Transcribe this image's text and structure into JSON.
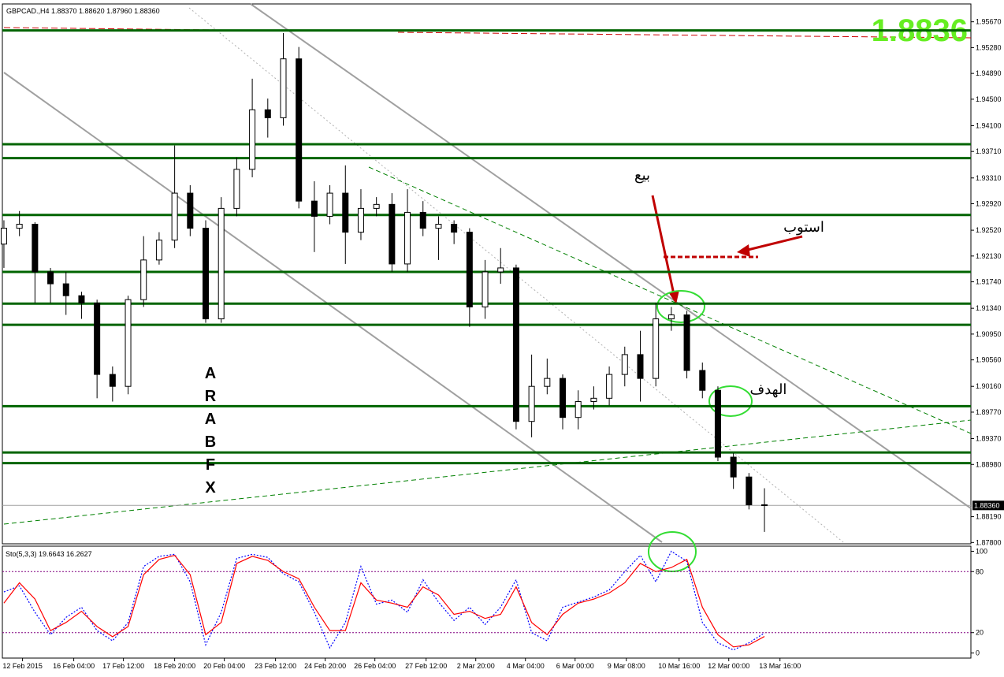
{
  "chart_data": {
    "type": "candlestick",
    "title": "GBPCAD.,H4 1.88370 1.88620 1.87960 1.88360",
    "ohlc": [
      [
        1.9231,
        1.9267,
        1.9195,
        1.9255
      ],
      [
        1.9255,
        1.9281,
        1.9243,
        1.9261
      ],
      [
        1.9261,
        1.9264,
        1.9142,
        1.9189
      ],
      [
        1.9189,
        1.9195,
        1.9142,
        1.9171
      ],
      [
        1.9171,
        1.9189,
        1.9124,
        1.9153
      ],
      [
        1.9153,
        1.9159,
        1.9118,
        1.9142
      ],
      [
        1.9142,
        1.9147,
        1.8998,
        1.9034
      ],
      [
        1.9034,
        1.9046,
        1.8993,
        1.9016
      ],
      [
        1.9016,
        1.9153,
        1.9004,
        1.9147
      ],
      [
        1.9147,
        1.9243,
        1.9136,
        1.9207
      ],
      [
        1.9207,
        1.9249,
        1.92,
        1.9237
      ],
      [
        1.9237,
        1.938,
        1.9225,
        1.9308
      ],
      [
        1.9308,
        1.932,
        1.9243,
        1.9255
      ],
      [
        1.9255,
        1.9267,
        1.9112,
        1.9118
      ],
      [
        1.9118,
        1.9302,
        1.9112,
        1.9285
      ],
      [
        1.9285,
        1.9362,
        1.9273,
        1.9344
      ],
      [
        1.9344,
        1.9481,
        1.9332,
        1.9434
      ],
      [
        1.9434,
        1.9451,
        1.9392,
        1.9422
      ],
      [
        1.9422,
        1.955,
        1.941,
        1.9511
      ],
      [
        1.9511,
        1.9529,
        1.9285,
        1.9296
      ],
      [
        1.9296,
        1.9326,
        1.9219,
        1.9273
      ],
      [
        1.9273,
        1.932,
        1.9261,
        1.9308
      ],
      [
        1.9308,
        1.935,
        1.9201,
        1.9249
      ],
      [
        1.9249,
        1.9314,
        1.9237,
        1.9285
      ],
      [
        1.9285,
        1.9302,
        1.9273,
        1.9291
      ],
      [
        1.9291,
        1.9308,
        1.9189,
        1.9201
      ],
      [
        1.9201,
        1.9314,
        1.9189,
        1.9279
      ],
      [
        1.9279,
        1.9296,
        1.9243,
        1.9255
      ],
      [
        1.9255,
        1.9273,
        1.9207,
        1.9261
      ],
      [
        1.9261,
        1.9267,
        1.9231,
        1.9249
      ],
      [
        1.9249,
        1.9255,
        1.9106,
        1.9136
      ],
      [
        1.9136,
        1.9207,
        1.9118,
        1.9189
      ],
      [
        1.9189,
        1.9225,
        1.9171,
        1.9195
      ],
      [
        1.9195,
        1.92,
        1.8951,
        1.8963
      ],
      [
        1.8963,
        1.9064,
        1.8939,
        1.9016
      ],
      [
        1.9016,
        1.9058,
        1.9004,
        1.9028
      ],
      [
        1.9028,
        1.9034,
        1.8951,
        1.8969
      ],
      [
        1.8969,
        1.901,
        1.8951,
        1.8993
      ],
      [
        1.8993,
        1.9016,
        1.8981,
        1.8998
      ],
      [
        1.8998,
        1.9046,
        1.8987,
        1.9034
      ],
      [
        1.9034,
        1.9076,
        1.9016,
        1.9064
      ],
      [
        1.9064,
        1.91,
        1.8993,
        1.9028
      ],
      [
        1.9028,
        1.9142,
        1.9016,
        1.9118
      ],
      [
        1.9118,
        1.9136,
        1.91,
        1.9124
      ],
      [
        1.9124,
        1.913,
        1.9028,
        1.904
      ],
      [
        1.904,
        1.9052,
        1.8998,
        1.901
      ],
      [
        1.901,
        1.9016,
        1.8903,
        1.8909
      ],
      [
        1.8909,
        1.8915,
        1.8861,
        1.8879
      ],
      [
        1.8879,
        1.8885,
        1.883,
        1.8837
      ],
      [
        1.8837,
        1.8862,
        1.8796,
        1.8836
      ]
    ],
    "xlim": [
      -0.1,
      62.3
    ],
    "xticks": [
      {
        "value": 1.2,
        "label": "12 Feb 2015"
      },
      {
        "value": 4.5,
        "label": "16 Feb 04:00"
      },
      {
        "value": 7.7,
        "label": "17 Feb 12:00"
      },
      {
        "value": 11,
        "label": "18 Feb 20:00"
      },
      {
        "value": 14.2,
        "label": "20 Feb 04:00"
      },
      {
        "value": 17.5,
        "label": "23 Feb 12:00"
      },
      {
        "value": 20.7,
        "label": "24 Feb 20:00"
      },
      {
        "value": 23.9,
        "label": "26 Feb 04:00"
      },
      {
        "value": 27.2,
        "label": "27 Feb 12:00"
      },
      {
        "value": 30.4,
        "label": "2 Mar 20:00"
      },
      {
        "value": 33.6,
        "label": "4 Mar 04:00"
      },
      {
        "value": 36.8,
        "label": "6 Mar 00:00"
      },
      {
        "value": 40.1,
        "label": "9 Mar 08:00"
      },
      {
        "value": 43.5,
        "label": "10 Mar 16:00"
      },
      {
        "value": 46.7,
        "label": "12 Mar 00:00"
      },
      {
        "value": 50,
        "label": "13 Mar 16:00"
      }
    ],
    "ylim": [
      1.8778,
      1.9594
    ],
    "yticks": [
      {
        "value": 1.9567,
        "label": "1.95670"
      },
      {
        "value": 1.9528,
        "label": "1.95280"
      },
      {
        "value": 1.9489,
        "label": "1.94890"
      },
      {
        "value": 1.945,
        "label": "1.94500"
      },
      {
        "value": 1.941,
        "label": "1.94100"
      },
      {
        "value": 1.9371,
        "label": "1.93710"
      },
      {
        "value": 1.9331,
        "label": "1.93310"
      },
      {
        "value": 1.9292,
        "label": "1.92920"
      },
      {
        "value": 1.9252,
        "label": "1.92520"
      },
      {
        "value": 1.9213,
        "label": "1.92130"
      },
      {
        "value": 1.9174,
        "label": "1.91740"
      },
      {
        "value": 1.9134,
        "label": "1.91340"
      },
      {
        "value": 1.9095,
        "label": "1.90950"
      },
      {
        "value": 1.9056,
        "label": "1.90560"
      },
      {
        "value": 1.9016,
        "label": "1.90160"
      },
      {
        "value": 1.8977,
        "label": "1.89770"
      },
      {
        "value": 1.8937,
        "label": "1.89370"
      },
      {
        "value": 1.8898,
        "label": "1.88980"
      },
      {
        "value": 1.8819,
        "label": "1.88190"
      },
      {
        "value": 1.878,
        "label": "1.87800"
      }
    ],
    "levels": [
      1.9554,
      1.9382,
      1.9361,
      1.9275,
      1.9189,
      1.9141,
      1.9109,
      1.8986,
      1.8916,
      1.89
    ],
    "level_color": "#006400",
    "last_price": {
      "value": 1.8836,
      "label": "1.88360"
    },
    "price_display": "1.8836",
    "annotations": {
      "sell": "بيع",
      "stop": "استوب",
      "target": "الهدف",
      "watermark": [
        "A",
        "R",
        "A",
        "B",
        "F",
        "X"
      ]
    }
  },
  "indicator": {
    "type": "line",
    "title": "Sto(5,3,3) 19.6643 16.2627",
    "ylim": [
      -5,
      105
    ],
    "yticks": [
      0,
      20,
      80,
      100
    ],
    "levels": [
      20,
      80
    ],
    "series": [
      {
        "color": "#0000ff",
        "dash": true,
        "values": [
          60,
          66,
          40,
          18,
          35,
          45,
          22,
          12,
          30,
          85,
          95,
          97,
          70,
          8,
          40,
          93,
          97,
          94,
          78,
          70,
          40,
          5,
          30,
          85,
          48,
          52,
          40,
          72,
          50,
          32,
          45,
          28,
          45,
          72,
          20,
          12,
          45,
          50,
          55,
          62,
          80,
          96,
          70,
          100,
          90,
          30,
          10,
          3,
          10,
          19.6643
        ]
      },
      {
        "color": "#ff0000",
        "dash": false,
        "values": [
          49,
          69,
          53,
          22,
          30,
          41,
          26,
          16,
          26,
          77,
          92,
          96,
          77,
          18,
          30,
          88,
          95,
          91,
          80,
          73,
          45,
          22,
          22,
          69,
          52,
          49,
          45,
          65,
          57,
          38,
          41,
          34,
          38,
          65,
          30,
          18,
          38,
          49,
          53,
          59,
          69,
          88,
          80,
          84,
          92,
          45,
          18,
          6,
          8,
          16.2627
        ]
      }
    ]
  }
}
